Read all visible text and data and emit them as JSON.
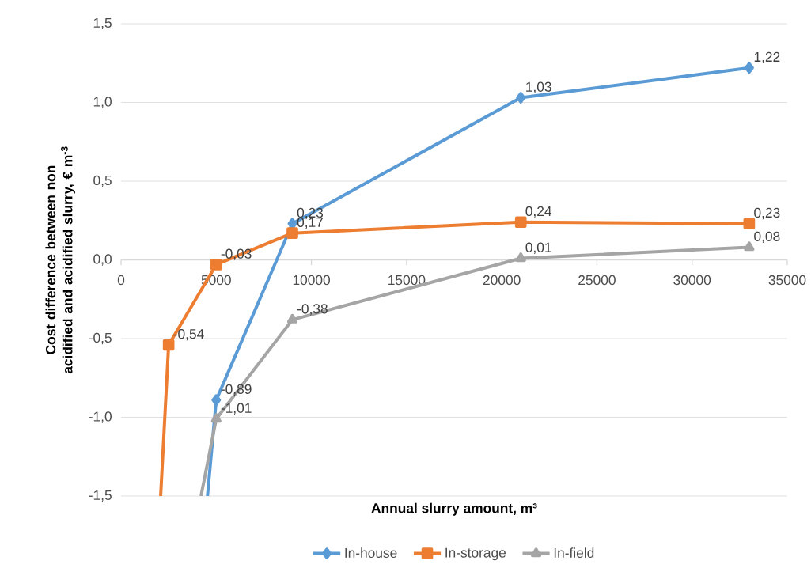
{
  "chart_data": {
    "type": "line",
    "xlabel": "Annual slurry amount, m³",
    "ylabel": "Cost difference between non acidified and acidified slurry, € m$^{-3}$",
    "xlim": [
      0,
      35000
    ],
    "xticks": [
      0,
      5000,
      10000,
      15000,
      20000,
      25000,
      30000,
      35000
    ],
    "ylim": [
      -1.5,
      1.5
    ],
    "yticks": [
      {
        "value": -1.5,
        "label": "-1,5"
      },
      {
        "value": -1.0,
        "label": "-1,0"
      },
      {
        "value": -0.5,
        "label": "-0,5"
      },
      {
        "value": 0,
        "label": "0,0"
      },
      {
        "value": 0.5,
        "label": "0,5"
      },
      {
        "value": 1.0,
        "label": "1,0"
      },
      {
        "value": 1.5,
        "label": "1,5"
      }
    ],
    "grid": "y",
    "legend": "bottom",
    "line_style": "solid",
    "series": [
      {
        "name": "In-house",
        "color": "#5b9bd5",
        "marker": "diamond",
        "x": [
          4540,
          5000,
          9000,
          21000,
          33000
        ],
        "values": [
          -1.5,
          -0.89,
          0.23,
          1.03,
          1.22
        ],
        "value_labels": [
          null,
          "-0,89",
          "0,23",
          "1,03",
          "1,22"
        ]
      },
      {
        "name": "In-storage",
        "color": "#ed7d31",
        "marker": "square",
        "x": [
          2080,
          2500,
          5000,
          9000,
          21000,
          33000
        ],
        "values": [
          -1.5,
          -0.54,
          -0.03,
          0.17,
          0.24,
          0.23
        ],
        "value_labels": [
          null,
          "-0,54",
          "-0,03",
          "0,17",
          "0,24",
          "0,23"
        ]
      },
      {
        "name": "In-field",
        "color": "#a5a5a5",
        "marker": "triangle",
        "x": [
          4200,
          5000,
          9000,
          21000,
          33000
        ],
        "values": [
          -1.5,
          -1.01,
          -0.38,
          0.01,
          0.08
        ],
        "value_labels": [
          null,
          "-1,01",
          "-0,38",
          "0,01",
          "0,08"
        ]
      }
    ]
  }
}
